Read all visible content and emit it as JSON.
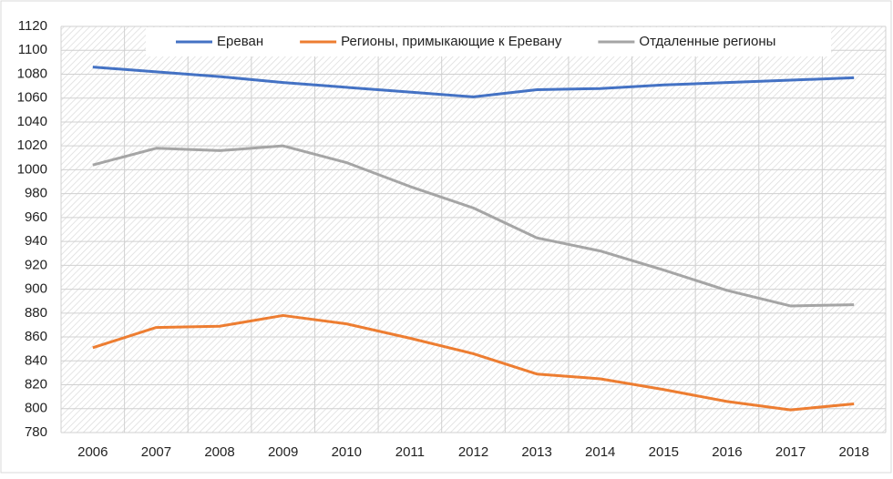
{
  "chart_data": {
    "type": "line",
    "categories": [
      "2006",
      "2007",
      "2008",
      "2009",
      "2010",
      "2011",
      "2012",
      "2013",
      "2014",
      "2015",
      "2016",
      "2017",
      "2018"
    ],
    "series": [
      {
        "name": "Ереван",
        "color": "#4472c4",
        "values": [
          1086,
          1082,
          1078,
          1073,
          1069,
          1065,
          1061,
          1067,
          1068,
          1071,
          1073,
          1075,
          1077
        ]
      },
      {
        "name": "Регионы, примыкающие к Еревану",
        "color": "#ed7d31",
        "values": [
          851,
          868,
          869,
          878,
          871,
          859,
          846,
          829,
          825,
          816,
          806,
          799,
          804
        ]
      },
      {
        "name": "Отдаленные регионы",
        "color": "#a5a5a5",
        "values": [
          1004,
          1018,
          1016,
          1020,
          1006,
          986,
          968,
          943,
          932,
          916,
          899,
          886,
          887
        ]
      }
    ],
    "ylim": [
      780,
      1120
    ],
    "yticks": [
      780,
      800,
      820,
      840,
      860,
      880,
      900,
      920,
      940,
      960,
      980,
      1000,
      1020,
      1040,
      1060,
      1080,
      1100,
      1120
    ],
    "grid": true,
    "legend": "top"
  }
}
